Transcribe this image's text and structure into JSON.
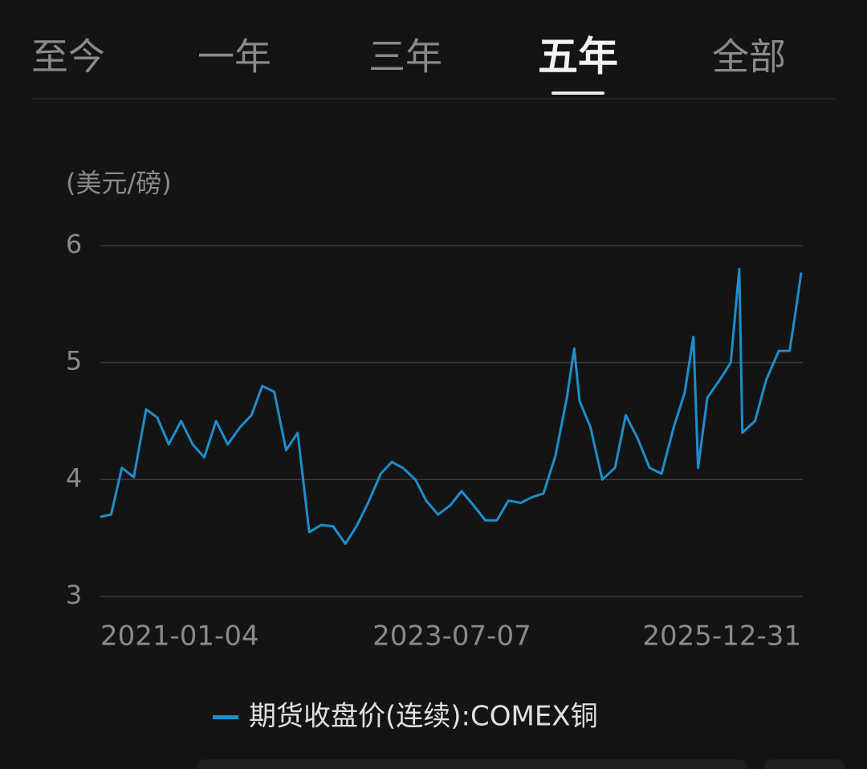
{
  "tabs": {
    "items": [
      "至今",
      "一年",
      "三年",
      "五年",
      "全部"
    ],
    "active_index": 3
  },
  "chart_data": {
    "type": "line",
    "y_label": "(美元/磅)",
    "x": [
      "2021-01-04",
      "2021-02-01",
      "2021-03-01",
      "2021-04-01",
      "2021-05-03",
      "2021-06-01",
      "2021-07-01",
      "2021-08-02",
      "2021-09-01",
      "2021-10-01",
      "2021-11-01",
      "2021-12-01",
      "2022-01-03",
      "2022-02-01",
      "2022-03-01",
      "2022-04-01",
      "2022-05-02",
      "2022-06-01",
      "2022-07-01",
      "2022-08-01",
      "2022-09-01",
      "2022-10-03",
      "2022-11-01",
      "2022-12-01",
      "2023-01-03",
      "2023-02-01",
      "2023-03-01",
      "2023-04-03",
      "2023-05-01",
      "2023-06-01",
      "2023-07-03",
      "2023-08-01",
      "2023-09-01",
      "2023-10-02",
      "2023-11-01",
      "2023-12-01",
      "2024-01-02",
      "2024-02-01",
      "2024-03-01",
      "2024-04-01",
      "2024-05-01",
      "2024-05-20",
      "2024-06-03",
      "2024-07-01",
      "2024-08-01",
      "2024-09-03",
      "2024-10-01",
      "2024-11-01",
      "2024-12-02",
      "2025-01-02",
      "2025-02-03",
      "2025-03-03",
      "2025-03-26",
      "2025-04-07",
      "2025-05-01",
      "2025-06-02",
      "2025-07-01",
      "2025-07-23",
      "2025-07-31",
      "2025-09-02",
      "2025-10-01",
      "2025-11-03",
      "2025-12-01",
      "2025-12-15",
      "2025-12-31"
    ],
    "series": [
      {
        "name": "期货收盘价(连续):COMEX铜",
        "color": "#1f8dcc",
        "values": [
          3.68,
          3.7,
          4.1,
          4.02,
          4.6,
          4.53,
          4.3,
          4.5,
          4.3,
          4.19,
          4.5,
          4.3,
          4.45,
          4.55,
          4.8,
          4.75,
          4.25,
          4.4,
          3.55,
          3.61,
          3.6,
          3.45,
          3.6,
          3.8,
          4.05,
          4.15,
          4.1,
          4.0,
          3.82,
          3.7,
          3.78,
          3.9,
          3.78,
          3.65,
          3.65,
          3.82,
          3.8,
          3.85,
          3.88,
          4.2,
          4.7,
          5.12,
          4.67,
          4.45,
          4.0,
          4.1,
          4.55,
          4.35,
          4.1,
          4.05,
          4.45,
          4.74,
          5.22,
          4.1,
          4.7,
          4.85,
          5.0,
          5.8,
          4.4,
          4.5,
          4.85,
          5.1,
          5.1,
          5.4,
          5.77
        ]
      }
    ],
    "xlim": [
      "2021-01-04",
      "2025-12-31"
    ],
    "xticks": [
      "2021-01-04",
      "2023-07-07",
      "2025-12-31"
    ],
    "ylim": [
      3,
      6
    ],
    "yticks": [
      3,
      4,
      5,
      6
    ],
    "grid": true
  }
}
